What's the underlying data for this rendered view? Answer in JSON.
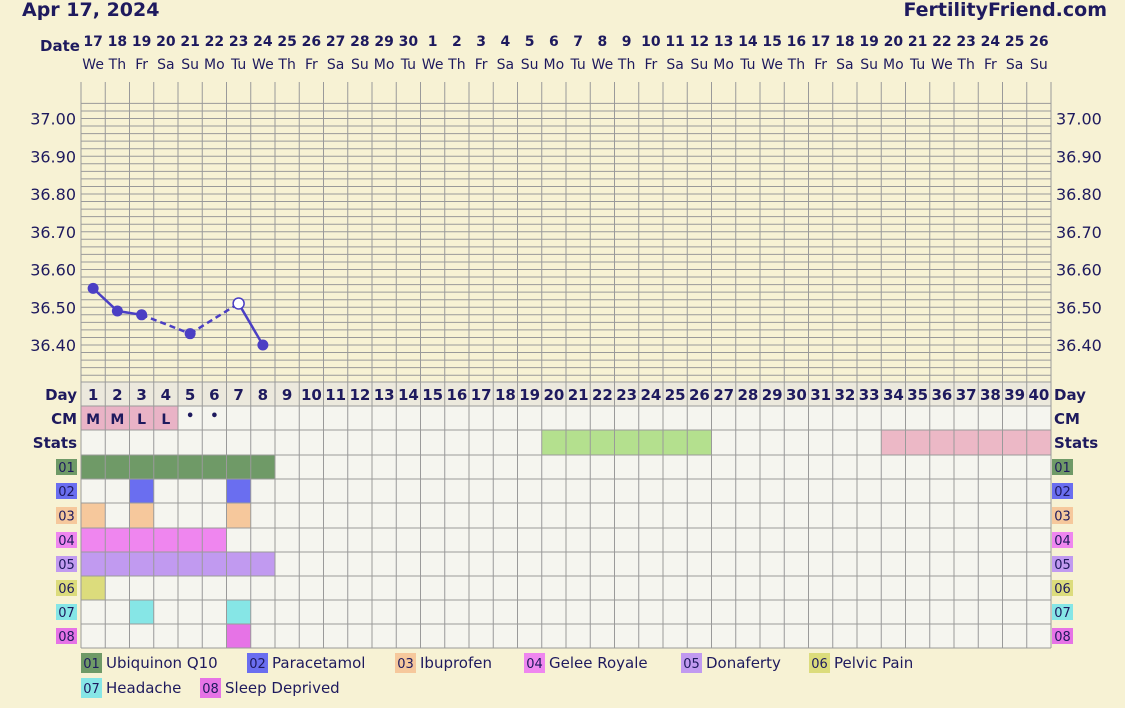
{
  "header": {
    "start_date": "Apr 17, 2024",
    "site_name": "FertilityFriend.com"
  },
  "labels": {
    "date": "Date",
    "day": "Day",
    "cm": "CM",
    "stats": "Stats"
  },
  "colors": {
    "background": "#f7f2d4",
    "temp_line": "#4b3fc4",
    "text_dark": "#1e1a5e",
    "grid_line": "#9a9a9a",
    "lower_cell": "#f5f5ef",
    "stats_green": "#b4e08e",
    "stats_pink": "#ecb8c6",
    "cm_fill": "#e9b3c6"
  },
  "chart_data": {
    "type": "line",
    "title": "",
    "num_days": 40,
    "y_ticks": [
      "37.00",
      "36.90",
      "36.80",
      "36.70",
      "36.60",
      "36.50",
      "36.40"
    ],
    "ylim": [
      36.33,
      37.08
    ],
    "date_numbers": [
      "17",
      "18",
      "19",
      "20",
      "21",
      "22",
      "23",
      "24",
      "25",
      "26",
      "27",
      "28",
      "29",
      "30",
      "1",
      "2",
      "3",
      "4",
      "5",
      "6",
      "7",
      "8",
      "9",
      "10",
      "11",
      "12",
      "13",
      "14",
      "15",
      "16",
      "17",
      "18",
      "19",
      "20",
      "21",
      "22",
      "23",
      "24",
      "25",
      "26"
    ],
    "weekdays": [
      "We",
      "Th",
      "Fr",
      "Sa",
      "Su",
      "Mo",
      "Tu",
      "We",
      "Th",
      "Fr",
      "Sa",
      "Su",
      "Mo",
      "Tu",
      "We",
      "Th",
      "Fr",
      "Sa",
      "Su",
      "Mo",
      "Tu",
      "We",
      "Th",
      "Fr",
      "Sa",
      "Su",
      "Mo",
      "Tu",
      "We",
      "Th",
      "Fr",
      "Sa",
      "Su",
      "Mo",
      "Tu",
      "We",
      "Th",
      "Fr",
      "Sa",
      "Su"
    ],
    "temperatures": [
      {
        "day": 1,
        "value": 36.55,
        "kind": "filled"
      },
      {
        "day": 2,
        "value": 36.49,
        "kind": "filled"
      },
      {
        "day": 3,
        "value": 36.48,
        "kind": "filled"
      },
      {
        "day": 5,
        "value": 36.43,
        "kind": "filled"
      },
      {
        "day": 7,
        "value": 36.51,
        "kind": "open"
      },
      {
        "day": 8,
        "value": 36.4,
        "kind": "filled"
      }
    ],
    "line_segments": [
      {
        "from": 1,
        "to": 2,
        "style": "solid"
      },
      {
        "from": 2,
        "to": 3,
        "style": "solid"
      },
      {
        "from": 3,
        "to": 5,
        "style": "dashed"
      },
      {
        "from": 5,
        "to": 7,
        "style": "dashed"
      },
      {
        "from": 7,
        "to": 8,
        "style": "solid"
      }
    ],
    "cervical_mucus": [
      {
        "day": 1,
        "label": "M"
      },
      {
        "day": 2,
        "label": "M"
      },
      {
        "day": 3,
        "label": "L"
      },
      {
        "day": 4,
        "label": "L"
      },
      {
        "day": 5,
        "label": "•"
      },
      {
        "day": 6,
        "label": "•"
      }
    ],
    "stats_ranges": [
      {
        "start": 20,
        "end": 26,
        "color": "#b4e08e"
      },
      {
        "start": 34,
        "end": 40,
        "color": "#ecb8c6"
      }
    ],
    "custom_rows": [
      {
        "code": "01",
        "name": "Ubiquinon Q10",
        "color": "#6f9a67",
        "days": [
          1,
          2,
          3,
          4,
          5,
          6,
          7,
          8
        ]
      },
      {
        "code": "02",
        "name": "Paracetamol",
        "color": "#6a6ef0",
        "days": [
          3,
          7
        ]
      },
      {
        "code": "03",
        "name": "Ibuprofen",
        "color": "#f6c89c",
        "days": [
          1,
          3,
          7
        ]
      },
      {
        "code": "04",
        "name": "Gelee Royale",
        "color": "#ef86ef",
        "days": [
          1,
          2,
          3,
          4,
          5,
          6
        ]
      },
      {
        "code": "05",
        "name": "Donaferty",
        "color": "#c19af0",
        "days": [
          1,
          2,
          3,
          4,
          5,
          6,
          7,
          8
        ]
      },
      {
        "code": "06",
        "name": "Pelvic Pain",
        "color": "#dcdc7c",
        "days": [
          1
        ]
      },
      {
        "code": "07",
        "name": "Headache",
        "color": "#86e6e6",
        "days": [
          3,
          7
        ]
      },
      {
        "code": "08",
        "name": "Sleep Deprived",
        "color": "#e673e6",
        "days": [
          7
        ]
      }
    ]
  }
}
